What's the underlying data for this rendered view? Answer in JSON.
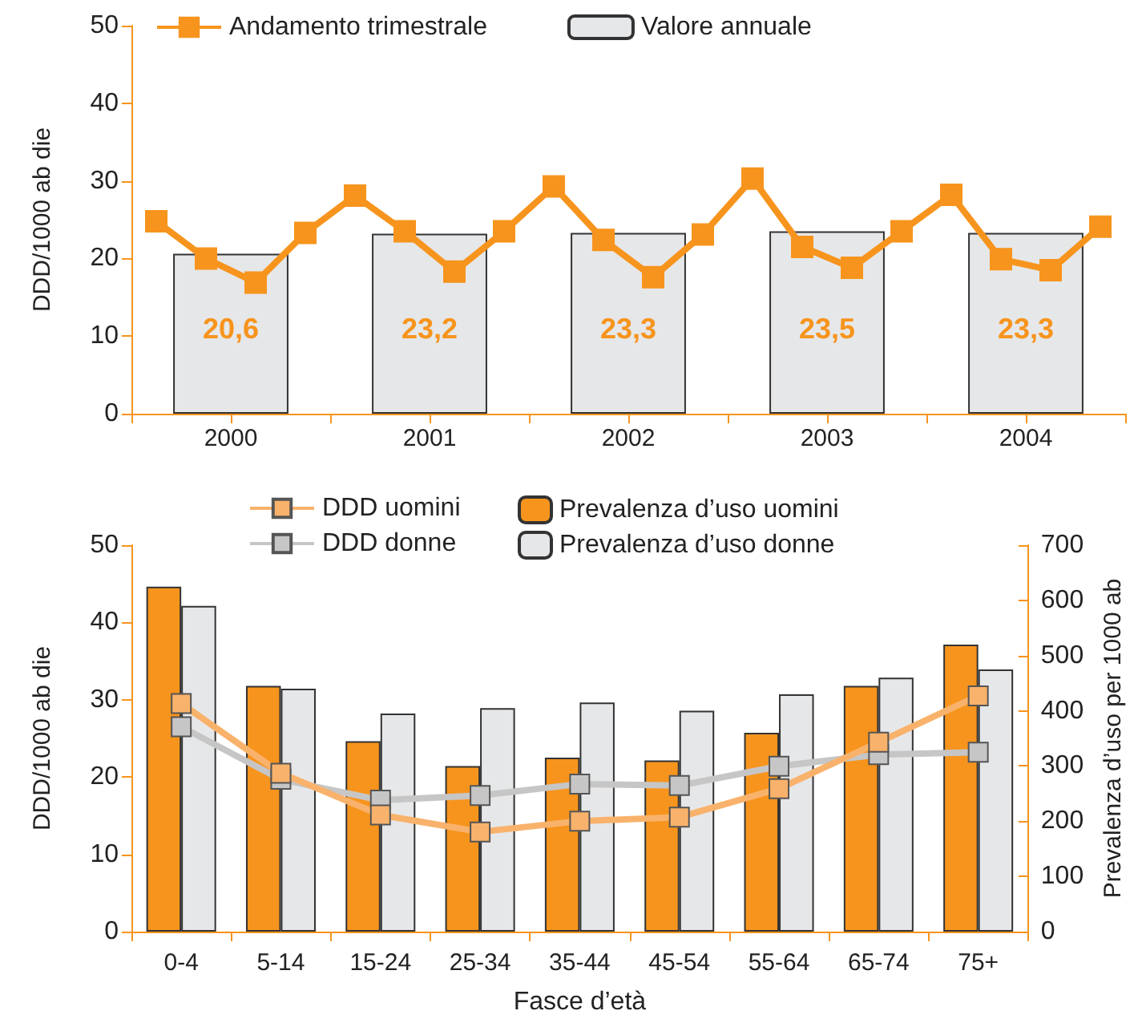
{
  "chart_data": [
    {
      "type": "bar",
      "ylabel": "DDD/1000 ab die",
      "xlim": [
        2000,
        2005
      ],
      "xticks": [
        {
          "value": 2000,
          "label": null
        },
        {
          "value": 2000.5,
          "label": "2000"
        },
        {
          "value": 2001,
          "label": null
        },
        {
          "value": 2001.5,
          "label": "2001"
        },
        {
          "value": 2002,
          "label": null
        },
        {
          "value": 2002.5,
          "label": "2002"
        },
        {
          "value": 2003,
          "label": null
        },
        {
          "value": 2003.5,
          "label": "2003"
        },
        {
          "value": 2004,
          "label": null
        },
        {
          "value": 2004.5,
          "label": "2004"
        },
        {
          "value": 2005,
          "label": null
        }
      ],
      "ylim": [
        0,
        50
      ],
      "yticks": [
        0,
        10,
        20,
        30,
        40,
        50
      ],
      "grid": false,
      "legend": "top",
      "marker": "square",
      "series": [
        {
          "type": "line",
          "name": "Andamento trimestrale",
          "color": "#f7941d",
          "x": [
            2000.125,
            2000.375,
            2000.625,
            2000.875,
            2001.125,
            2001.375,
            2001.625,
            2001.875,
            2002.125,
            2002.375,
            2002.625,
            2002.875,
            2003.125,
            2003.375,
            2003.625,
            2003.875,
            2004.125,
            2004.375,
            2004.625,
            2004.875
          ],
          "values": [
            24.8,
            20.0,
            16.9,
            23.3,
            28.1,
            23.5,
            18.3,
            23.5,
            29.3,
            22.4,
            17.6,
            23.1,
            30.3,
            21.5,
            18.8,
            23.5,
            28.2,
            19.9,
            18.5,
            24.1
          ]
        },
        {
          "name": "Valore annuale",
          "color": "#e6e7e8",
          "x": [
            2000.5,
            2001.5,
            2002.5,
            2003.5,
            2004.5
          ],
          "values": [
            20.6,
            23.2,
            23.3,
            23.5,
            23.3
          ],
          "value_labels": [
            "20,6",
            "23,2",
            "23,3",
            "23,5",
            "23,3"
          ]
        }
      ]
    },
    {
      "type": "bar",
      "xlabel": "Fasce d’età",
      "ylabel": "DDD/1000 ab die",
      "y2label": "Prevalenza d’uso per 1000 ab",
      "categories": [
        "0-4",
        "5-14",
        "15-24",
        "25-34",
        "35-44",
        "45-54",
        "55-64",
        "65-74",
        "75+"
      ],
      "ylim": [
        0,
        50
      ],
      "yticks": [
        0,
        10,
        20,
        30,
        40,
        50
      ],
      "y2lim": [
        0,
        700
      ],
      "y2ticks": [
        0,
        100,
        200,
        300,
        400,
        500,
        600,
        700
      ],
      "grid": false,
      "legend": "top",
      "marker": "square",
      "series": [
        {
          "type": "line",
          "name": "DDD uomini",
          "color": "#f9b26b",
          "values": [
            29.5,
            20.5,
            15.1,
            12.9,
            14.3,
            14.8,
            18.5,
            24.5,
            30.5
          ]
        },
        {
          "type": "line",
          "name": "DDD donne",
          "color": "#c6c6c6",
          "values": [
            26.5,
            19.7,
            17.0,
            17.6,
            19.1,
            18.9,
            21.4,
            22.9,
            23.2
          ]
        },
        {
          "axis": "y2",
          "name": "Prevalenza d’uso uomini",
          "color": "#f7941d",
          "values": [
            625,
            445,
            345,
            300,
            315,
            310,
            360,
            445,
            520
          ]
        },
        {
          "axis": "y2",
          "name": "Prevalenza d’uso donne",
          "color": "#e6e7e8",
          "values": [
            590,
            440,
            395,
            405,
            415,
            400,
            430,
            460,
            475
          ]
        }
      ]
    }
  ]
}
